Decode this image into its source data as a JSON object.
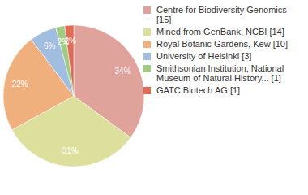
{
  "chart_data": {
    "type": "pie",
    "categories": [
      "Centre for Biodiversity Genomics [15]",
      "Mined from GenBank, NCBI [14]",
      "Royal Botanic Gardens, Kew [10]",
      "University of Helsinki [3]",
      "Smithsonian Institution, National Museum of Natural History... [1]",
      "GATC Biotech AG [1]"
    ],
    "values": [
      34,
      31,
      22,
      6,
      2,
      2
    ],
    "value_labels": [
      "34%",
      "31%",
      "22%",
      "6%",
      "2%",
      "2%"
    ],
    "colors": [
      "#e0a39b",
      "#dde09d",
      "#f0b07d",
      "#a1bde0",
      "#9fcc82",
      "#e06b57"
    ],
    "data_labels": true,
    "legend": "top-right"
  }
}
